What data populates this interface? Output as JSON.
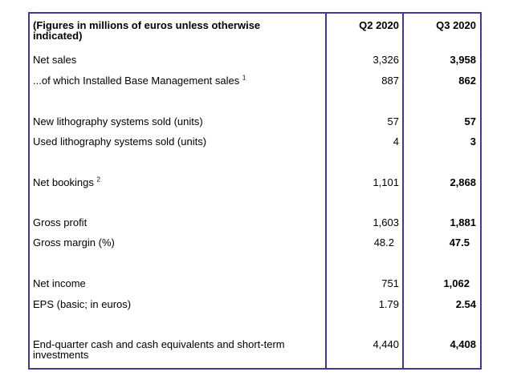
{
  "header": {
    "label": "(Figures in millions of euros unless otherwise indicated)",
    "col_q2": "Q2 2020",
    "col_q3": "Q3 2020"
  },
  "rows": [
    {
      "label": "Net sales",
      "footnote": "",
      "q2": "3,326",
      "q3": "3,958"
    },
    {
      "label": "...of which Installed Base Management sales",
      "footnote": "1",
      "q2": "887",
      "q3": "862"
    },
    {
      "label": "New lithography systems sold (units)",
      "footnote": "",
      "q2": "57",
      "q3": "57"
    },
    {
      "label": "Used lithography systems sold (units)",
      "footnote": "",
      "q2": "4",
      "q3": "3"
    },
    {
      "label": "Net bookings",
      "footnote": "2",
      "q2": "1,101",
      "q3": "2,868"
    },
    {
      "label": "Gross profit",
      "footnote": "",
      "q2": "1,603",
      "q3": "1,881"
    },
    {
      "label": "Gross margin (%)",
      "footnote": "",
      "q2": "48.2",
      "q3": "47.5"
    },
    {
      "label": "Net income",
      "footnote": "",
      "q2": "751",
      "q3": "1,062"
    },
    {
      "label": "EPS (basic; in euros)",
      "footnote": "",
      "q2": "1.79",
      "q3": "2.54"
    },
    {
      "label": "End-quarter cash and cash equivalents and short-term investments",
      "footnote": "",
      "q2": "4,440",
      "q3": "4,408"
    }
  ]
}
